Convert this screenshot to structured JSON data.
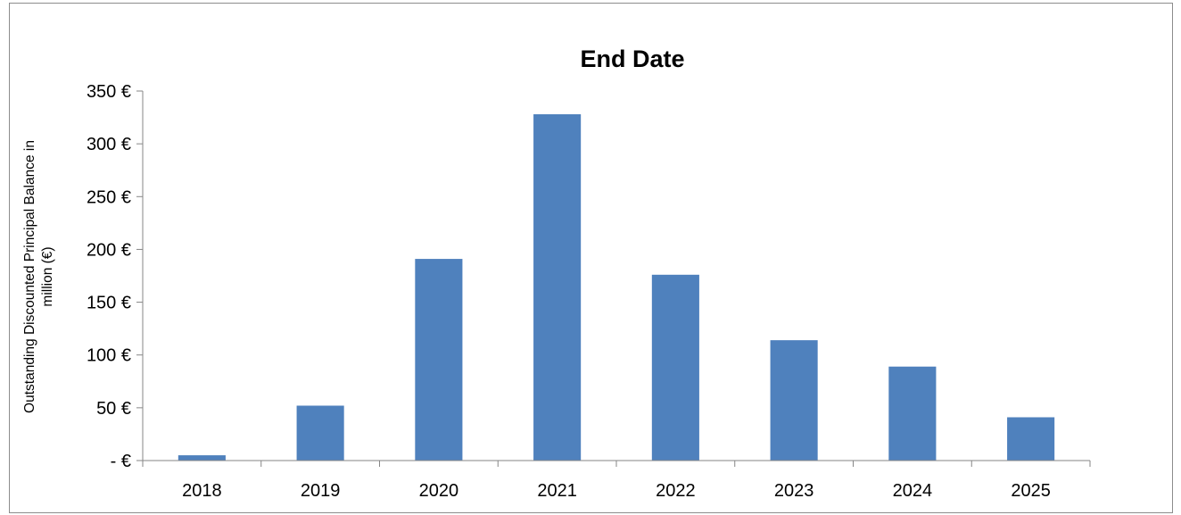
{
  "chart_data": {
    "type": "bar",
    "title": "End Date",
    "xlabel": "",
    "ylabel_lines": [
      "Outstanding Discounted Principal Balance in",
      "million (€)"
    ],
    "categories": [
      "2018",
      "2019",
      "2020",
      "2021",
      "2022",
      "2023",
      "2024",
      "2025"
    ],
    "values": [
      5,
      52,
      191,
      328,
      176,
      114,
      89,
      41
    ],
    "ylim": [
      0,
      350
    ],
    "y_ticks": [
      0,
      50,
      100,
      150,
      200,
      250,
      300,
      350
    ],
    "y_tick_labels": [
      "- €",
      "50 €",
      "100 €",
      "150 €",
      "200 €",
      "250 €",
      "300 €",
      "350 €"
    ],
    "grid": false,
    "legend": false,
    "bar_color": "#4f81bd"
  }
}
